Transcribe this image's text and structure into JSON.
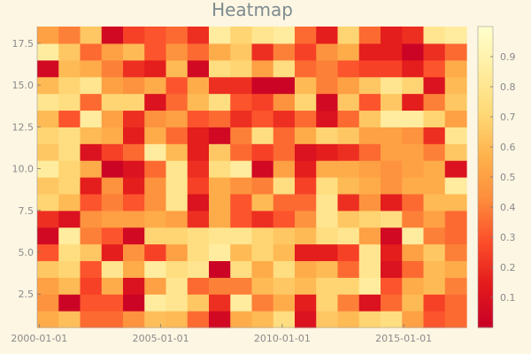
{
  "chart_data": {
    "type": "heatmap",
    "title": "Heatmap",
    "xlabel": "",
    "ylabel": "",
    "x_tick_labels": [
      "2000-01-01",
      "2005-01-01",
      "2010-01-01",
      "2015-01-01"
    ],
    "y_tick_labels": [
      "2.5",
      "5.0",
      "7.5",
      "10.0",
      "12.5",
      "15.0",
      "17.5"
    ],
    "colorbar_tick_labels": [
      "0.1",
      "0.2",
      "0.3",
      "0.4",
      "0.5",
      "0.6",
      "0.7",
      "0.8",
      "0.9"
    ],
    "colorbar_range": [
      0,
      1
    ],
    "colormap": [
      "#c70026",
      "#e31a1c",
      "#fc4e2a",
      "#fd8d3c",
      "#feb24c",
      "#fed976",
      "#ffeda0",
      "#ffffcc"
    ],
    "x_range": [
      "1999-12-01",
      "2017-08-01"
    ],
    "y_range": [
      0.5,
      18.5
    ],
    "values": [
      [
        0.55,
        0.62,
        0.35,
        0.35,
        0.45,
        0.62,
        0.6,
        0.35,
        0.05,
        0.55,
        0.6,
        0.75,
        0.1,
        0.65,
        0.6,
        0.7,
        0.75,
        0.5,
        0.3,
        0.35
      ],
      [
        0.45,
        0.02,
        0.3,
        0.3,
        0.02,
        0.85,
        0.8,
        0.65,
        0.2,
        0.85,
        0.4,
        0.55,
        0.15,
        0.7,
        0.4,
        0.1,
        0.35,
        0.6,
        0.25,
        0.35
      ],
      [
        0.5,
        0.6,
        0.25,
        0.55,
        0.1,
        0.5,
        0.8,
        0.35,
        0.4,
        0.4,
        0.6,
        0.65,
        0.6,
        0.7,
        0.7,
        0.85,
        0.3,
        0.55,
        0.6,
        0.4
      ],
      [
        0.65,
        0.7,
        0.3,
        0.8,
        0.55,
        0.85,
        0.75,
        0.8,
        0.02,
        0.75,
        0.55,
        0.75,
        0.55,
        0.6,
        0.35,
        0.8,
        0.1,
        0.35,
        0.6,
        0.55
      ],
      [
        0.3,
        0.75,
        0.65,
        0.15,
        0.45,
        0.25,
        0.5,
        0.75,
        0.85,
        0.6,
        0.7,
        0.6,
        0.15,
        0.15,
        0.25,
        0.8,
        0.15,
        0.5,
        0.65,
        0.4
      ],
      [
        0.05,
        0.85,
        0.4,
        0.3,
        0.05,
        0.7,
        0.7,
        0.75,
        0.8,
        0.8,
        0.7,
        0.65,
        0.6,
        0.75,
        0.8,
        0.5,
        0.05,
        0.85,
        0.4,
        0.35
      ],
      [
        0.2,
        0.1,
        0.45,
        0.5,
        0.5,
        0.55,
        0.5,
        0.2,
        0.55,
        0.3,
        0.2,
        0.3,
        0.45,
        0.8,
        0.65,
        0.7,
        0.75,
        0.4,
        0.5,
        0.35
      ],
      [
        0.7,
        0.6,
        0.3,
        0.4,
        0.3,
        0.45,
        0.8,
        0.1,
        0.55,
        0.3,
        0.6,
        0.35,
        0.35,
        0.8,
        0.2,
        0.45,
        0.15,
        0.35,
        0.6,
        0.6
      ],
      [
        0.65,
        0.7,
        0.15,
        0.45,
        0.15,
        0.45,
        0.8,
        0.25,
        0.55,
        0.45,
        0.4,
        0.75,
        0.25,
        0.75,
        0.6,
        0.55,
        0.45,
        0.55,
        0.55,
        0.85
      ],
      [
        0.85,
        0.7,
        0.55,
        0.02,
        0.1,
        0.35,
        0.8,
        0.2,
        0.75,
        0.85,
        0.05,
        0.5,
        0.15,
        0.55,
        0.55,
        0.5,
        0.45,
        0.5,
        0.55,
        0.1
      ],
      [
        0.65,
        0.75,
        0.1,
        0.25,
        0.35,
        0.85,
        0.6,
        0.15,
        0.65,
        0.35,
        0.25,
        0.35,
        0.1,
        0.15,
        0.2,
        0.35,
        0.5,
        0.5,
        0.4,
        0.65
      ],
      [
        0.7,
        0.75,
        0.6,
        0.55,
        0.15,
        0.55,
        0.35,
        0.15,
        0.05,
        0.4,
        0.75,
        0.35,
        0.55,
        0.7,
        0.65,
        0.5,
        0.5,
        0.45,
        0.2,
        0.8
      ],
      [
        0.6,
        0.3,
        0.85,
        0.5,
        0.2,
        0.45,
        0.5,
        0.3,
        0.35,
        0.2,
        0.3,
        0.2,
        0.35,
        0.1,
        0.35,
        0.65,
        0.85,
        0.85,
        0.7,
        0.5
      ],
      [
        0.8,
        0.75,
        0.35,
        0.7,
        0.7,
        0.1,
        0.35,
        0.6,
        0.75,
        0.3,
        0.25,
        0.45,
        0.7,
        0.05,
        0.65,
        0.3,
        0.65,
        0.15,
        0.4,
        0.65
      ],
      [
        0.6,
        0.7,
        0.8,
        0.5,
        0.45,
        0.55,
        0.3,
        0.55,
        0.2,
        0.2,
        0.02,
        0.02,
        0.6,
        0.4,
        0.5,
        0.65,
        0.8,
        0.7,
        0.1,
        0.6
      ],
      [
        0.05,
        0.6,
        0.55,
        0.4,
        0.2,
        0.15,
        0.6,
        0.05,
        0.75,
        0.7,
        0.5,
        0.75,
        0.35,
        0.4,
        0.3,
        0.25,
        0.25,
        0.15,
        0.3,
        0.55
      ],
      [
        0.85,
        0.65,
        0.35,
        0.5,
        0.6,
        0.3,
        0.45,
        0.35,
        0.55,
        0.65,
        0.2,
        0.4,
        0.25,
        0.45,
        0.55,
        0.15,
        0.15,
        0.02,
        0.2,
        0.35
      ],
      [
        0.5,
        0.4,
        0.65,
        0.05,
        0.25,
        0.3,
        0.35,
        0.2,
        0.85,
        0.7,
        0.8,
        0.85,
        0.35,
        0.15,
        0.7,
        0.35,
        0.15,
        0.2,
        0.8,
        0.85
      ]
    ]
  }
}
